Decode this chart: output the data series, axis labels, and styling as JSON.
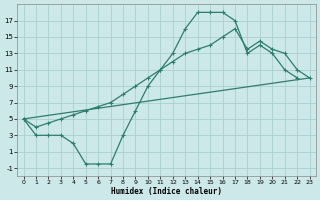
{
  "xlabel": "Humidex (Indice chaleur)",
  "background_color": "#cce8e8",
  "grid_color": "#aacfcf",
  "line_color": "#2d7d6e",
  "xlim": [
    -0.5,
    23.5
  ],
  "ylim": [
    -2,
    19
  ],
  "xticks": [
    0,
    1,
    2,
    3,
    4,
    5,
    6,
    7,
    8,
    9,
    10,
    11,
    12,
    13,
    14,
    15,
    16,
    17,
    18,
    19,
    20,
    21,
    22,
    23
  ],
  "yticks": [
    -1,
    1,
    3,
    5,
    7,
    9,
    11,
    13,
    15,
    17
  ],
  "line1_x": [
    0,
    1,
    2,
    3,
    4,
    5,
    6,
    7,
    8,
    9,
    10,
    11,
    12,
    13,
    14,
    15,
    16,
    17,
    18,
    19,
    20,
    21,
    22
  ],
  "line1_y": [
    5,
    3,
    3,
    3,
    2,
    -0.5,
    -0.5,
    -0.5,
    3,
    6,
    9,
    11,
    13,
    16,
    18,
    18,
    18,
    17,
    13,
    14,
    13,
    11,
    10
  ],
  "line2_x": [
    0,
    1,
    2,
    3,
    4,
    5,
    6,
    7,
    8,
    9,
    10,
    11,
    12,
    13,
    14,
    15,
    16,
    17,
    18,
    19,
    20,
    21,
    22,
    23
  ],
  "line2_y": [
    5,
    4,
    4.5,
    5,
    5.5,
    6,
    6.5,
    7,
    8,
    9,
    10,
    11,
    12,
    13,
    13.5,
    14,
    15,
    16,
    13.5,
    14.5,
    13.5,
    13,
    11,
    10
  ],
  "line3_x": [
    0,
    23
  ],
  "line3_y": [
    5,
    10
  ]
}
